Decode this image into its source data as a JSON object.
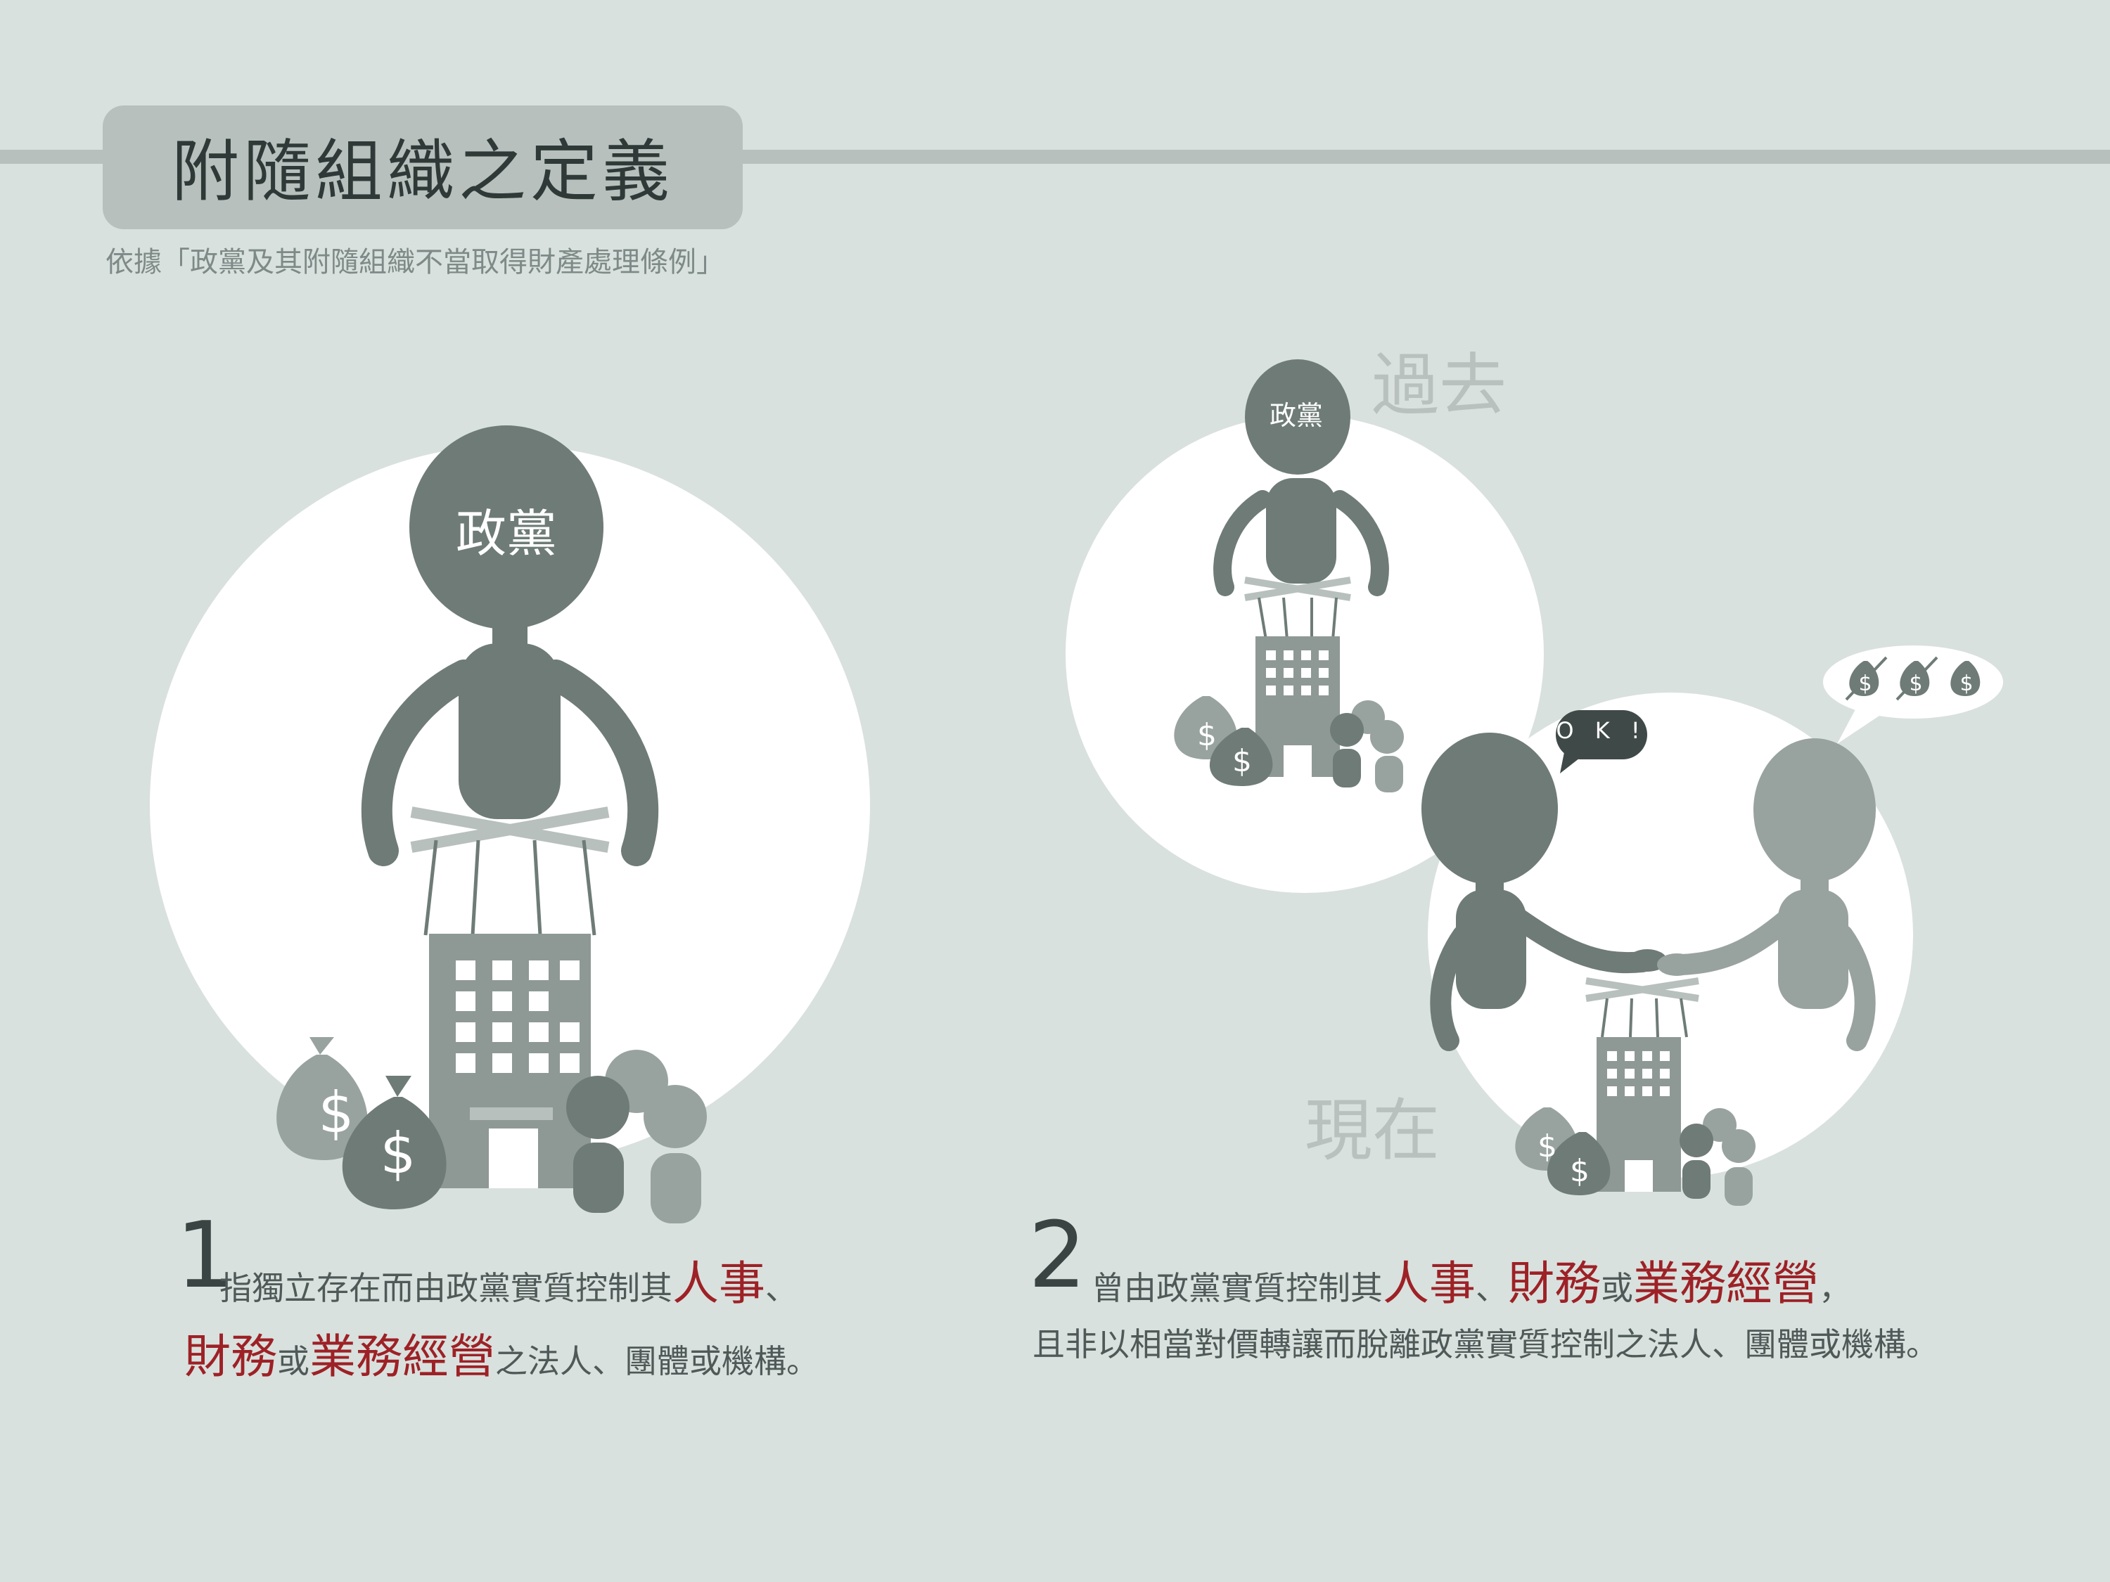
{
  "header": {
    "title": "附隨組織之定義",
    "subtitle": "依據「政黨及其附隨組織不當取得財產處理條例」"
  },
  "labels": {
    "party_big": "政黨",
    "party_small": "政黨",
    "past": "過去",
    "now": "現在",
    "ok_bubble": "O K !",
    "dollar": "$"
  },
  "definition1": {
    "number": "1",
    "line1_text": "指獨立存在而由政黨實質控制其",
    "line1_hot": "人事",
    "line1_tail": "、",
    "line2_hot1": "財務",
    "line2_or": "或",
    "line2_hot2": "業務經營",
    "line2_tail": "之法人、團體或機構。"
  },
  "definition2": {
    "number": "2",
    "line1_text": "曾由政黨實質控制其",
    "line1_hot1": "人事",
    "line1_sep": "、",
    "line1_hot2": "財務",
    "line1_or": "或",
    "line1_hot3": "業務經營",
    "line1_tail": "，",
    "line2": "且非以相當對價轉讓而脫離政黨實質控制之法人、團體或機構。"
  },
  "colors": {
    "background": "#d9e1de",
    "figure_dark": "#6e7b77",
    "figure_light": "#98a39f",
    "highlight": "#9d2126",
    "muted_text": "#b9c1be"
  }
}
